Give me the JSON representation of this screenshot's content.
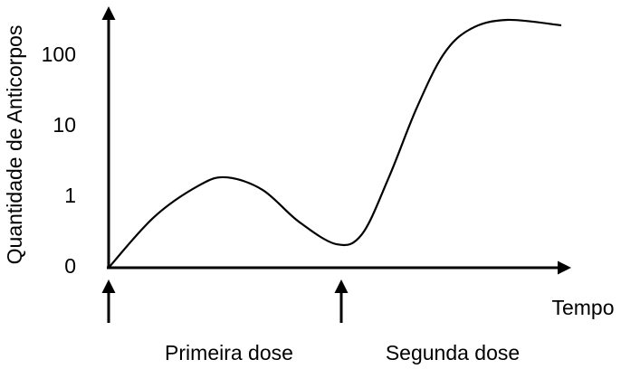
{
  "chart_data": {
    "type": "line",
    "ylabel": "Quantidade de Anticorpos",
    "xlabel": "Tempo",
    "yscale": "log",
    "ylim": [
      0.1,
      500
    ],
    "yticks": [
      {
        "value": 0.1,
        "label": "0"
      },
      1,
      10,
      100
    ],
    "xlim": [
      0,
      10
    ],
    "x": [
      0,
      1,
      2,
      2.6,
      3.4,
      4.2,
      5.04,
      5.6,
      6.2,
      6.8,
      7.4,
      8,
      8.8,
      10
    ],
    "series": [
      {
        "color": "#000000",
        "values": [
          0.1,
          0.52,
          1.47,
          1.91,
          1.27,
          0.45,
          0.215,
          0.3,
          1.97,
          18,
          106,
          243,
          326,
          273
        ]
      }
    ],
    "doses": [
      {
        "label": "Primeira dose",
        "x": 0
      },
      {
        "label": "Segunda dose",
        "x": 5.14
      }
    ]
  }
}
